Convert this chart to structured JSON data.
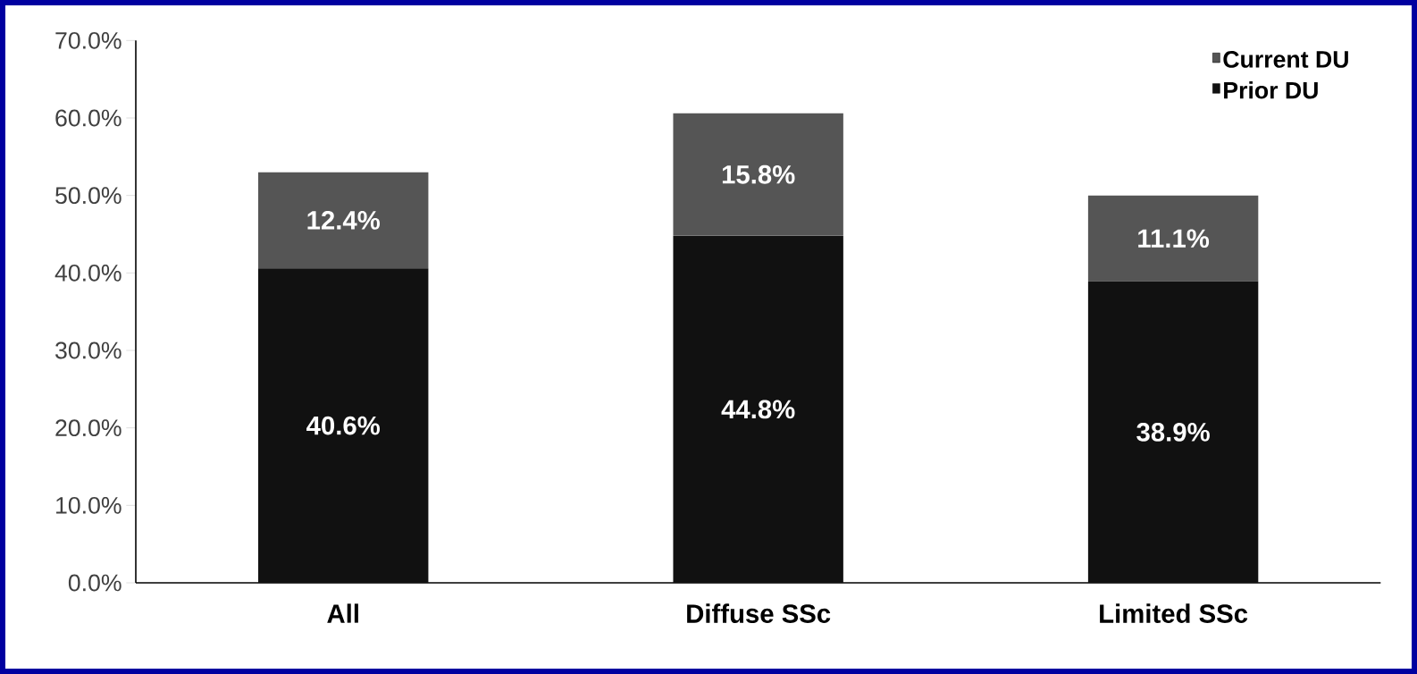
{
  "chart_data": {
    "type": "bar",
    "stacked": true,
    "categories": [
      "All",
      "Diffuse SSc",
      "Limited SSc"
    ],
    "series": [
      {
        "name": "Prior DU",
        "color": "#111111",
        "values": [
          40.6,
          44.8,
          38.9
        ],
        "value_labels": [
          "40.6%",
          "44.8%",
          "38.9%"
        ]
      },
      {
        "name": "Current DU",
        "color": "#555555",
        "values": [
          12.4,
          15.8,
          11.1
        ],
        "value_labels": [
          "12.4%",
          "15.8%",
          "11.1%"
        ]
      }
    ],
    "ylim": [
      0,
      70
    ],
    "yticks": [
      {
        "value": 0,
        "label": "0.0%"
      },
      {
        "value": 10,
        "label": "10.0%"
      },
      {
        "value": 20,
        "label": "20.0%"
      },
      {
        "value": 30,
        "label": "30.0%"
      },
      {
        "value": 40,
        "label": "40.0%"
      },
      {
        "value": 50,
        "label": "50.0%"
      },
      {
        "value": 60,
        "label": "60.0%"
      },
      {
        "value": 70,
        "label": "70.0%"
      }
    ],
    "legend": "top right",
    "grid": false
  }
}
